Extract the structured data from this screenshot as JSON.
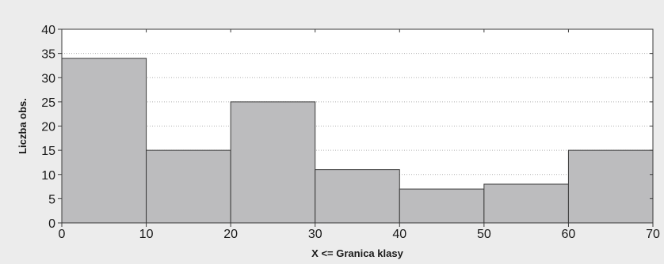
{
  "chart_data": {
    "type": "bar",
    "subtype": "histogram",
    "bins": [
      {
        "from": 0,
        "to": 10,
        "value": 34
      },
      {
        "from": 10,
        "to": 20,
        "value": 15
      },
      {
        "from": 20,
        "to": 30,
        "value": 25
      },
      {
        "from": 30,
        "to": 40,
        "value": 11
      },
      {
        "from": 40,
        "to": 50,
        "value": 7
      },
      {
        "from": 50,
        "to": 60,
        "value": 8
      },
      {
        "from": 60,
        "to": 70,
        "value": 15
      }
    ],
    "title": "",
    "xlabel": "X <= Granica klasy",
    "ylabel": "Liczba obs.",
    "xlim": [
      0,
      70
    ],
    "ylim": [
      0,
      40
    ],
    "xticks": [
      0,
      10,
      20,
      30,
      40,
      50,
      60,
      70
    ],
    "yticks": [
      0,
      5,
      10,
      15,
      20,
      25,
      30,
      35,
      40
    ],
    "grid": "horizontal dotted",
    "legend": "none",
    "colors": {
      "bar_fill": "#bcbcbe",
      "bar_stroke": "#3a3a3a",
      "plot_background": "#ffffff",
      "page_background": "#ececec",
      "grid": "#b0b0b0"
    }
  }
}
